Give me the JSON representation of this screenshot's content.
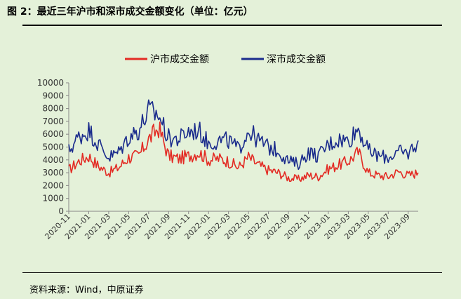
{
  "header": {
    "title": "图 2：最近三年沪市和深市成交金额变化（单位：亿元）"
  },
  "footer": {
    "source": "资料来源：Wind，中原证券"
  },
  "chart_data": {
    "type": "line",
    "title": "",
    "xlabel": "",
    "ylabel": "",
    "ylim": [
      0,
      10000
    ],
    "yticks": [
      0,
      1000,
      2000,
      3000,
      4000,
      5000,
      6000,
      7000,
      8000,
      9000,
      10000
    ],
    "xticks": [
      "2020-11",
      "2021-01",
      "2021-03",
      "2021-05",
      "2021-07",
      "2021-09",
      "2021-11",
      "2022-01",
      "2022-03",
      "2022-05",
      "2022-07",
      "2022-09",
      "2022-11",
      "2023-01",
      "2023-03",
      "2023-05",
      "2023-07",
      "2023-09"
    ],
    "grid": false,
    "legend": "top-center",
    "x": [
      "2020-11",
      "2020-12",
      "2021-01",
      "2021-02",
      "2021-03",
      "2021-04",
      "2021-05",
      "2021-06",
      "2021-07",
      "2021-08",
      "2021-09",
      "2021-10",
      "2021-11",
      "2021-12",
      "2022-01",
      "2022-02",
      "2022-03",
      "2022-04",
      "2022-05",
      "2022-06",
      "2022-07",
      "2022-08",
      "2022-09",
      "2022-10",
      "2022-11",
      "2022-12",
      "2023-01",
      "2023-02",
      "2023-03",
      "2023-04",
      "2023-05",
      "2023-06",
      "2023-07",
      "2023-08",
      "2023-09",
      "2023-10"
    ],
    "series": [
      {
        "name": "沪市成交金额",
        "color": "#e32b24",
        "values": [
          3200,
          3900,
          4300,
          3500,
          3000,
          3400,
          4200,
          4300,
          5600,
          6500,
          4300,
          4100,
          4300,
          4600,
          4000,
          4100,
          3900,
          3400,
          4200,
          3600,
          3200,
          3000,
          2600,
          2500,
          2800,
          2700,
          3300,
          3600,
          3900,
          4600,
          3000,
          2800,
          2700,
          3100,
          2800,
          3000
        ]
      },
      {
        "name": "深市成交金额",
        "color": "#1a2b8c",
        "values": [
          4700,
          5800,
          6300,
          5200,
          4200,
          4600,
          5800,
          6300,
          7800,
          7500,
          5700,
          5600,
          6200,
          6300,
          5300,
          5500,
          5500,
          4800,
          6300,
          5500,
          5000,
          4700,
          3900,
          3700,
          4600,
          4300,
          5200,
          5600,
          5500,
          6500,
          4700,
          4300,
          4200,
          4600,
          4500,
          5500
        ]
      }
    ]
  }
}
